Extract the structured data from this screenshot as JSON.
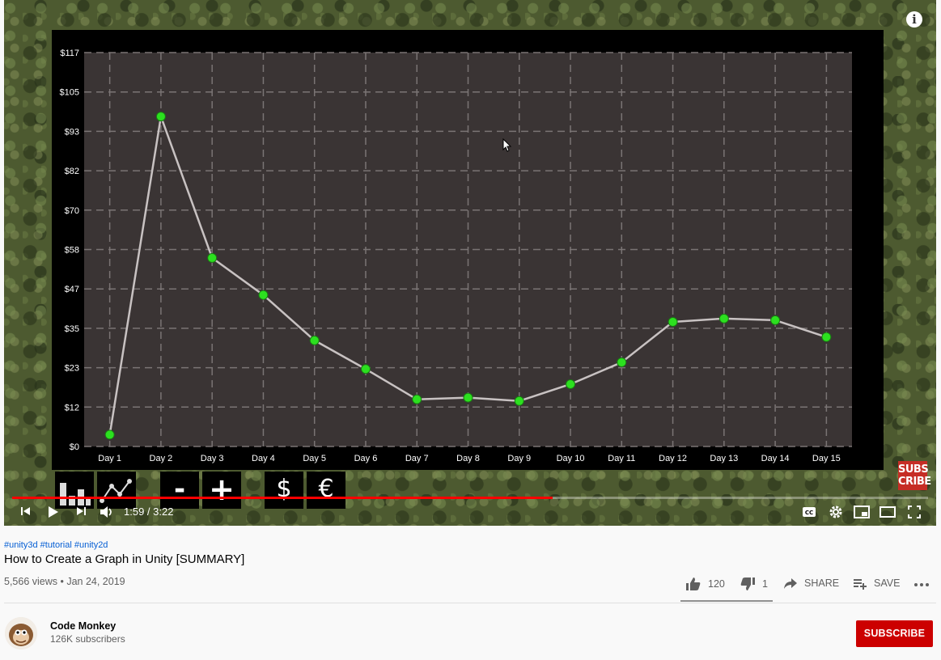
{
  "video": {
    "time_label": "1:59 / 3:22",
    "progress_fraction": 0.59,
    "buttons": {
      "bar_chart": "bar-chart-icon",
      "line_chart": "line-chart-icon",
      "minus": "-",
      "plus": "+",
      "dollar": "$",
      "euro": "€"
    },
    "subscribe_badge": [
      "SUBS",
      "CRIBE"
    ]
  },
  "chart_data": {
    "type": "line",
    "categories": [
      "Day 1",
      "Day 2",
      "Day 3",
      "Day 4",
      "Day 5",
      "Day 6",
      "Day 7",
      "Day 8",
      "Day 9",
      "Day 10",
      "Day 11",
      "Day 12",
      "Day 13",
      "Day 14",
      "Day 15"
    ],
    "values": [
      3.5,
      98,
      56,
      45,
      31.5,
      23,
      14,
      14.5,
      13.5,
      18.5,
      25,
      37,
      38,
      37.5,
      32.5
    ],
    "ytick_labels": [
      "$0",
      "$12",
      "$23",
      "$35",
      "$47",
      "$58",
      "$70",
      "$82",
      "$93",
      "$105",
      "$117"
    ],
    "ylim": [
      0,
      117
    ],
    "grid": true,
    "line_color": "#c8c2c2",
    "point_color": "#2ce01f",
    "plot_bg": "#3a3434"
  },
  "info": {
    "tags": "#unity3d #tutorial #unity2d",
    "title": "How to Create a Graph in Unity [SUMMARY]",
    "meta": "5,566 views • Jan 24, 2019",
    "likes": "120",
    "dislikes": "1",
    "share_label": "SHARE",
    "save_label": "SAVE"
  },
  "channel": {
    "name": "Code Monkey",
    "subscribers": "126K subscribers",
    "subscribe_label": "SUBSCRIBE"
  }
}
